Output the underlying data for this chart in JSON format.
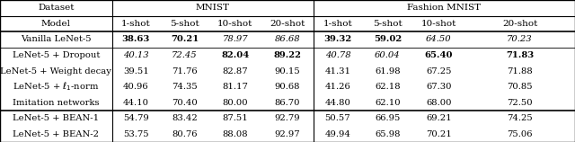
{
  "col_headers_row1": [
    "Dataset",
    "MNIST",
    "Fashion MNIST"
  ],
  "col_headers_row2": [
    "Model",
    "1-shot",
    "5-shot",
    "10-shot",
    "20-shot",
    "1-shot",
    "5-shot",
    "10-shot",
    "20-shot"
  ],
  "rows": [
    [
      "Vanilla LeNet-5",
      "38.63",
      "70.21",
      "78.97",
      "86.68",
      "39.32",
      "59.02",
      "64.50",
      "70.23"
    ],
    [
      "LeNet-5 + Dropout",
      "40.13",
      "72.45",
      "82.04",
      "89.22",
      "40.78",
      "60.04",
      "65.40",
      "71.83"
    ],
    [
      "LeNet-5 + Weight decay",
      "39.51",
      "71.76",
      "82.87",
      "90.15",
      "41.31",
      "61.98",
      "67.25",
      "71.88"
    ],
    [
      "LeNet-5 + $\\ell_1$-norm",
      "40.96",
      "74.35",
      "81.17",
      "90.68",
      "41.26",
      "62.18",
      "67.30",
      "70.85"
    ],
    [
      "Imitation networks",
      "44.10",
      "70.40",
      "80.00",
      "86.70",
      "44.80",
      "62.10",
      "68.00",
      "72.50"
    ],
    [
      "LeNet-5 + BEAN-1",
      "54.79",
      "83.42",
      "87.51",
      "92.79",
      "50.57",
      "66.95",
      "69.21",
      "74.25"
    ],
    [
      "LeNet-5 + BEAN-2",
      "53.75",
      "80.76",
      "88.08",
      "92.97",
      "49.94",
      "65.98",
      "70.21",
      "75.06"
    ]
  ],
  "bold_cells": {
    "5_1": true,
    "5_2": true,
    "5_5": true,
    "5_6": true,
    "6_3": true,
    "6_4": true,
    "6_7": true,
    "6_8": true
  },
  "italic_cells": {
    "5_3": true,
    "5_4": true,
    "5_7": true,
    "5_8": true,
    "6_1": true,
    "6_2": true,
    "6_5": true,
    "6_6": true
  },
  "background_color": "#ffffff",
  "font_size": 7.2,
  "header_font_size": 7.5
}
